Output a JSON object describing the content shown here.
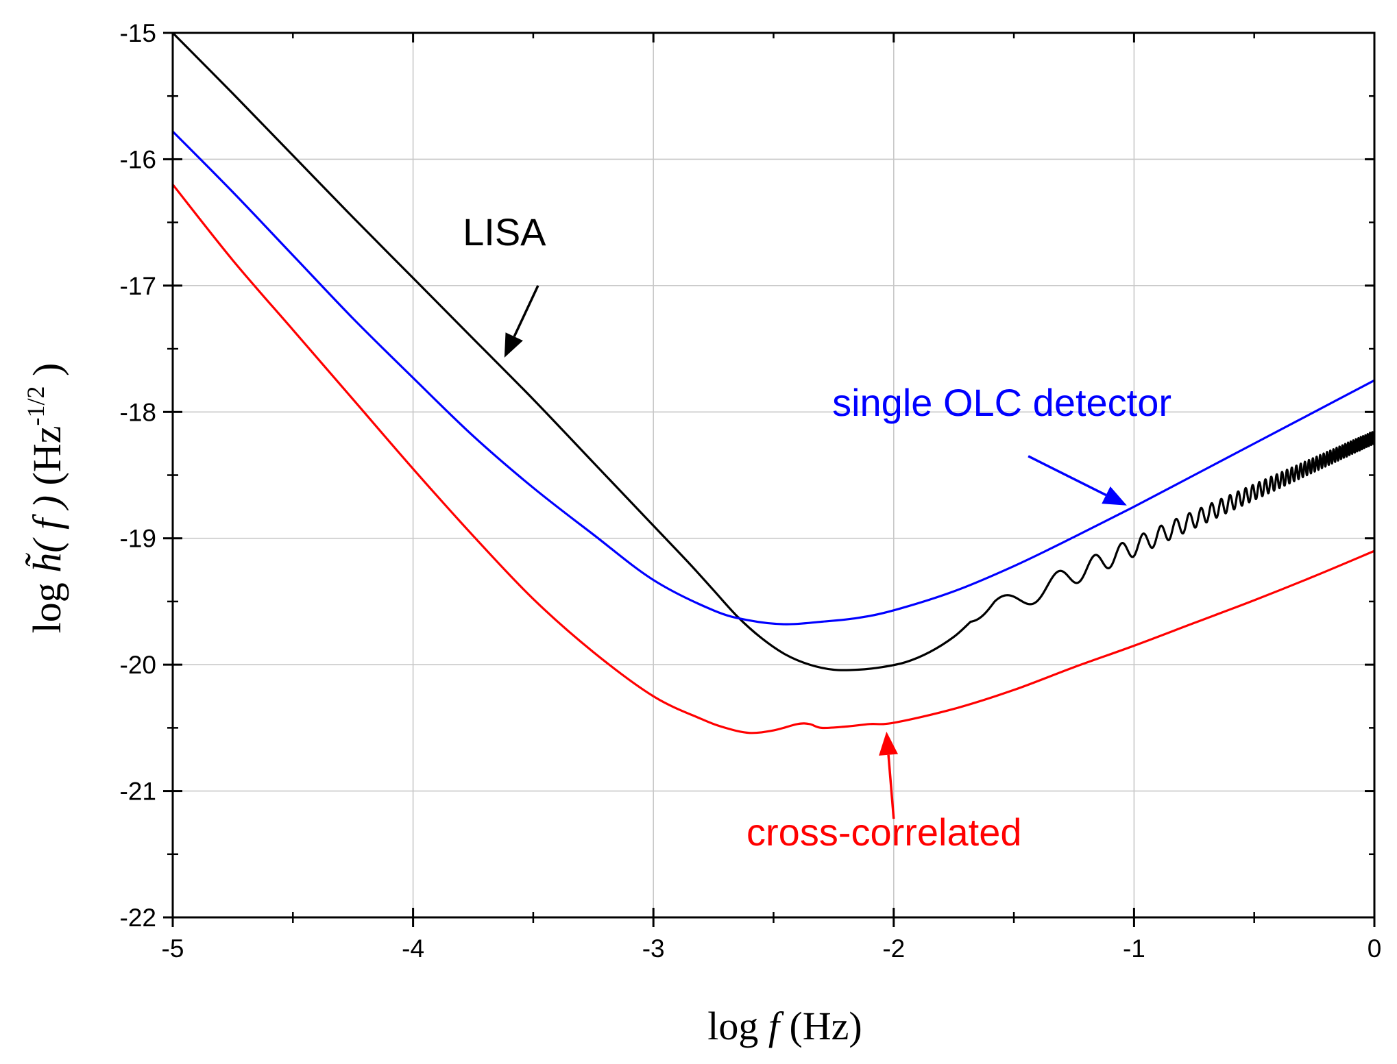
{
  "chart_data": {
    "type": "line",
    "xlabel": {
      "prefix": "log ",
      "var": "f",
      "unit": " (Hz)"
    },
    "ylabel": {
      "prefix": "log ",
      "func": "h̃",
      "arg": "( f )",
      "unit_open": " (Hz",
      "exponent": "-1/2",
      "unit_close": " )"
    },
    "xlim": [
      -5,
      0
    ],
    "ylim": [
      -22,
      -15
    ],
    "xticks": [
      -5,
      -4,
      -3,
      -2,
      -1,
      0
    ],
    "xtick_labels": [
      "-5",
      "-4",
      "-3",
      "-2",
      "-1",
      "0"
    ],
    "yticks": [
      -22,
      -21,
      -20,
      -19,
      -18,
      -17,
      -16,
      -15
    ],
    "ytick_labels": [
      "-22",
      "-21",
      "-20",
      "-19",
      "-18",
      "-17",
      "-16",
      "-15"
    ],
    "grid": true,
    "legend": "none (inline annotations)",
    "series": [
      {
        "name": "LISA",
        "color": "#000000",
        "x": [
          -5.0,
          -4.75,
          -4.5,
          -4.25,
          -4.0,
          -3.75,
          -3.5,
          -3.25,
          -3.0,
          -2.85,
          -2.75,
          -2.65,
          -2.55,
          -2.45,
          -2.35,
          -2.25,
          -2.15,
          -2.05,
          -1.95,
          -1.85,
          -1.75,
          -1.68
        ],
        "y": [
          -15.0,
          -15.48,
          -15.97,
          -16.46,
          -16.94,
          -17.42,
          -17.9,
          -18.4,
          -18.9,
          -19.2,
          -19.41,
          -19.62,
          -19.79,
          -19.92,
          -20.0,
          -20.04,
          -20.04,
          -20.02,
          -19.98,
          -19.9,
          -19.78,
          -19.66
        ],
        "oscillating_tail": {
          "x_start": -1.68,
          "x_end": 0.0,
          "trend_start": -19.66,
          "trend_end": -18.2,
          "amplitude_start": 0.09,
          "amplitude_end": 0.05,
          "first_peak_x": -1.55,
          "cycles": 48
        }
      },
      {
        "name": "single OLC detector",
        "color": "#0000ff",
        "x": [
          -5.0,
          -4.75,
          -4.5,
          -4.25,
          -4.0,
          -3.75,
          -3.5,
          -3.25,
          -3.0,
          -2.75,
          -2.6,
          -2.45,
          -2.3,
          -2.15,
          -2.0,
          -1.75,
          -1.5,
          -1.25,
          -1.0,
          -0.75,
          -0.5,
          -0.25,
          0.0
        ],
        "y": [
          -15.78,
          -16.26,
          -16.76,
          -17.26,
          -17.73,
          -18.19,
          -18.6,
          -18.97,
          -19.33,
          -19.57,
          -19.65,
          -19.68,
          -19.66,
          -19.63,
          -19.57,
          -19.42,
          -19.22,
          -18.99,
          -18.75,
          -18.5,
          -18.25,
          -18.0,
          -17.75
        ]
      },
      {
        "name": "cross-correlated",
        "color": "#ff0000",
        "x": [
          -5.0,
          -4.75,
          -4.5,
          -4.25,
          -4.0,
          -3.75,
          -3.5,
          -3.25,
          -3.0,
          -2.8,
          -2.7,
          -2.6,
          -2.5,
          -2.4,
          -2.35,
          -2.3,
          -2.2,
          -2.1,
          -2.0,
          -1.75,
          -1.5,
          -1.25,
          -1.0,
          -0.75,
          -0.5,
          -0.25,
          0.0
        ],
        "y": [
          -16.2,
          -16.8,
          -17.35,
          -17.9,
          -18.45,
          -18.98,
          -19.48,
          -19.9,
          -20.25,
          -20.43,
          -20.5,
          -20.54,
          -20.52,
          -20.47,
          -20.47,
          -20.5,
          -20.49,
          -20.47,
          -20.46,
          -20.35,
          -20.2,
          -20.02,
          -19.85,
          -19.67,
          -19.49,
          -19.3,
          -19.1
        ]
      }
    ],
    "annotations": [
      {
        "text": "LISA",
        "color": "#000000",
        "text_at": [
          -3.62,
          -16.68
        ],
        "arrow_from": [
          -3.48,
          -17.0
        ],
        "arrow_to": [
          -3.62,
          -17.57
        ]
      },
      {
        "text": "single OLC detector",
        "color": "#0000ff",
        "text_at": [
          -1.55,
          -18.03
        ],
        "arrow_from": [
          -1.44,
          -18.35
        ],
        "arrow_to": [
          -1.03,
          -18.74
        ]
      },
      {
        "text": "cross-correlated",
        "color": "#ff0000",
        "text_at": [
          -2.04,
          -21.43
        ],
        "arrow_from": [
          -2.0,
          -21.22
        ],
        "arrow_to": [
          -2.03,
          -20.53
        ]
      }
    ]
  }
}
